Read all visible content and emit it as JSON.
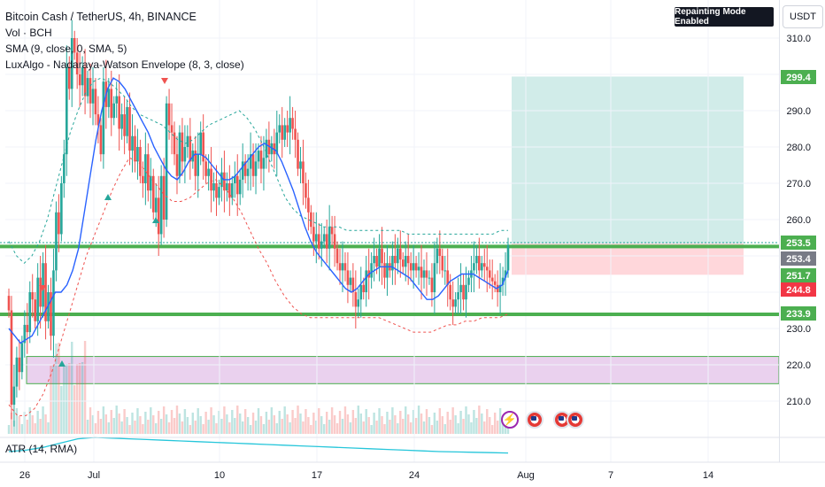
{
  "header": {
    "symbol": "Bitcoin Cash / TetherUS, 4h, BINANCE",
    "volume": "Vol · BCH",
    "sma": "SMA (9, close, 0, SMA, 5)",
    "envelope": "LuxAlgo - Nadaraya-Watson Envelope (8, 3, close)",
    "repaint_badge": "Repainting Mode Enabled",
    "currency": "USDT",
    "atr": "ATR (14, RMA)"
  },
  "colors": {
    "up": "#26a69a",
    "down": "#ef5350",
    "sma": "#2962ff",
    "envelope_upper": "#26a69a",
    "envelope_lower": "#ef5350",
    "support": "#4caf50",
    "zone": "#e1bee7",
    "target": "#b2dfdb",
    "stop": "#ffcdd2",
    "atr": "#26c6da"
  },
  "chart_data": {
    "type": "candlestick",
    "price_axis": {
      "ticks": [
        210.0,
        220.0,
        230.0,
        240.0,
        250.0,
        260.0,
        270.0,
        280.0,
        290.0,
        300.0,
        310.0
      ],
      "labels": [
        "210.0",
        "220.0",
        "230.0",
        "",
        "",
        "260.0",
        "270.0",
        "280.0",
        "290.0",
        "",
        "310.0"
      ]
    },
    "time_axis": {
      "labels": [
        "26",
        "Jul",
        "10",
        "17",
        "24",
        "Aug",
        "7",
        "14"
      ]
    },
    "price_labels": [
      {
        "label": "299.4",
        "value": 299.4,
        "color": "#4caf50"
      },
      {
        "label": "253.5",
        "value": 253.5,
        "color": "#4caf50"
      },
      {
        "label": "253.4",
        "value": 253.4,
        "color": "#787b86"
      },
      {
        "label": "251.7",
        "value": 251.7,
        "color": "#4caf50"
      },
      {
        "label": "244.8",
        "value": 244.8,
        "color": "#f23645"
      },
      {
        "label": "233.9",
        "value": 233.9,
        "color": "#4caf50"
      }
    ],
    "horizontal_lines": [
      252.6,
      233.9
    ],
    "demand_zone": [
      214.8,
      222.3
    ],
    "position": {
      "entry": 253.4,
      "target": 299.4,
      "stop": 244.8
    },
    "close": [
      235.0,
      209.0,
      214.0,
      222.0,
      218.0,
      226.0,
      231.0,
      229.0,
      240.0,
      238.0,
      232.0,
      244.0,
      236.0,
      248.0,
      232.0,
      240.0,
      228.0,
      246.0,
      262.0,
      256.0,
      270.0,
      278.0,
      302.0,
      296.0,
      310.0,
      306.0,
      300.0,
      297.0,
      302.0,
      294.0,
      299.0,
      292.0,
      296.0,
      289.0,
      286.0,
      278.0,
      298.0,
      291.0,
      296.0,
      288.0,
      292.0,
      294.0,
      285.0,
      289.0,
      283.0,
      291.0,
      279.0,
      283.0,
      276.0,
      280.0,
      272.0,
      270.0,
      278.0,
      268.0,
      272.0,
      262.0,
      266.0,
      256.0,
      272.0,
      260.0,
      292.0,
      286.0,
      284.0,
      278.0,
      272.0,
      284.0,
      276.0,
      280.0,
      283.0,
      276.0,
      279.0,
      272.0,
      278.0,
      284.0,
      276.0,
      272.0,
      274.0,
      268.0,
      270.0,
      266.0,
      269.0,
      273.0,
      268.0,
      270.0,
      266.0,
      270.0,
      272.0,
      267.0,
      271.0,
      276.0,
      272.0,
      274.0,
      278.0,
      272.0,
      276.0,
      279.0,
      274.0,
      277.0,
      282.0,
      278.0,
      281.0,
      278.0,
      284.0,
      286.0,
      282.0,
      286.0,
      284.0,
      288.0,
      285.0,
      282.0,
      274.0,
      276.0,
      270.0,
      266.0,
      262.0,
      258.0,
      254.0,
      256.0,
      252.0,
      254.0,
      256.0,
      252.0,
      258.0,
      256.0,
      252.0,
      248.0,
      246.0,
      248.0,
      246.0,
      242.0,
      244.0,
      240.0,
      236.0,
      238.0,
      242.0,
      240.0,
      246.0,
      244.0,
      248.0,
      250.0,
      247.0,
      252.0,
      248.0,
      244.0,
      248.0,
      246.0,
      250.0,
      248.0,
      252.0,
      249.0,
      247.0,
      250.0,
      248.0,
      246.0,
      248.0,
      246.0,
      247.0,
      244.0,
      246.0,
      244.0,
      244.0,
      240.0,
      248.0,
      252.0,
      250.0,
      246.0,
      246.0,
      242.0,
      238.0,
      236.0,
      238.0,
      240.0,
      242.0,
      238.0,
      242.0,
      244.0,
      246.0,
      248.0,
      250.0,
      246.0,
      248.0,
      247.0,
      246.0,
      244.0,
      243.0,
      242.0,
      240.0,
      242.0,
      244.0,
      246.0,
      253.0
    ],
    "sma": [
      230.0,
      228.0,
      226.0,
      227.0,
      228.0,
      231.0,
      234.0,
      237.0,
      240.0,
      240.0,
      242.0,
      246.0,
      252.0,
      262.0,
      272.0,
      282.0,
      290.0,
      296.0,
      299.0,
      298.0,
      296.0,
      293.0,
      290.0,
      287.0,
      284.0,
      280.0,
      277.0,
      274.0,
      272.0,
      271.0,
      273.0,
      276.0,
      278.0,
      278.0,
      277.0,
      275.0,
      273.0,
      271.0,
      271.0,
      272.0,
      274.0,
      276.0,
      278.0,
      280.0,
      281.0,
      280.0,
      279.0,
      276.0,
      272.0,
      268.0,
      263.0,
      258.0,
      254.0,
      251.0,
      249.0,
      247.0,
      245.0,
      243.0,
      241.0,
      240.0,
      241.0,
      243.0,
      245.0,
      246.0,
      247.0,
      247.0,
      247.0,
      246.0,
      245.0,
      244.0,
      242.0,
      240.0,
      238.0,
      238.0,
      239.0,
      241.0,
      243.0,
      244.0,
      245.0,
      245.0,
      245.0,
      244.0,
      243.0,
      242.0,
      241.0,
      242.0,
      246.0
    ],
    "envelope_upper": [
      254.0,
      250.0,
      248.0,
      250.0,
      254.0,
      260.0,
      268.0,
      276.0,
      284.0,
      290.0,
      295.0,
      298.0,
      299.0,
      298.0,
      296.0,
      294.0,
      291.0,
      289.0,
      288.0,
      287.0,
      286.0,
      284.0,
      282.0,
      281.0,
      282.0,
      284.0,
      286.0,
      287.0,
      288.0,
      289.0,
      290.0,
      288.0,
      285.0,
      281.0,
      276.0,
      271.0,
      266.0,
      263.0,
      261.0,
      260.0,
      259.0,
      258.0,
      258.0,
      258.0,
      257.0,
      257.0,
      257.0,
      257.0,
      257.0,
      257.0,
      257.0,
      257.0,
      256.0,
      256.0,
      256.0,
      256.0,
      256.0,
      256.0,
      256.0,
      256.0,
      256.0,
      256.0,
      256.0,
      256.0,
      257.0,
      257.0
    ],
    "envelope_lower": [
      209.0,
      206.0,
      206.0,
      208.0,
      212.0,
      218.0,
      226.0,
      234.0,
      242.0,
      250.0,
      256.0,
      262.0,
      268.0,
      273.0,
      277.0,
      276.0,
      273.0,
      270.0,
      267.0,
      265.0,
      265.0,
      266.0,
      268.0,
      270.0,
      271.0,
      269.0,
      266.0,
      262.0,
      257.0,
      252.0,
      248.0,
      243.0,
      239.0,
      236.0,
      234.0,
      233.0,
      233.0,
      233.0,
      233.0,
      233.0,
      233.0,
      233.0,
      233.0,
      233.0,
      232.0,
      231.0,
      230.0,
      229.0,
      229.0,
      229.0,
      230.0,
      231.0,
      231.0,
      232.0,
      232.0,
      233.0,
      233.0,
      233.0,
      234.0
    ],
    "atr": [
      1.0,
      1.2,
      1.6,
      2.2,
      2.8,
      3.0,
      2.9,
      2.8,
      2.7,
      2.6,
      2.5,
      2.4,
      2.3,
      2.2,
      2.1,
      2.0,
      1.9,
      1.8,
      1.7,
      1.6,
      1.5,
      1.4,
      1.3,
      1.2,
      1.1,
      1.0,
      0.95,
      0.9,
      0.85,
      0.8
    ]
  }
}
